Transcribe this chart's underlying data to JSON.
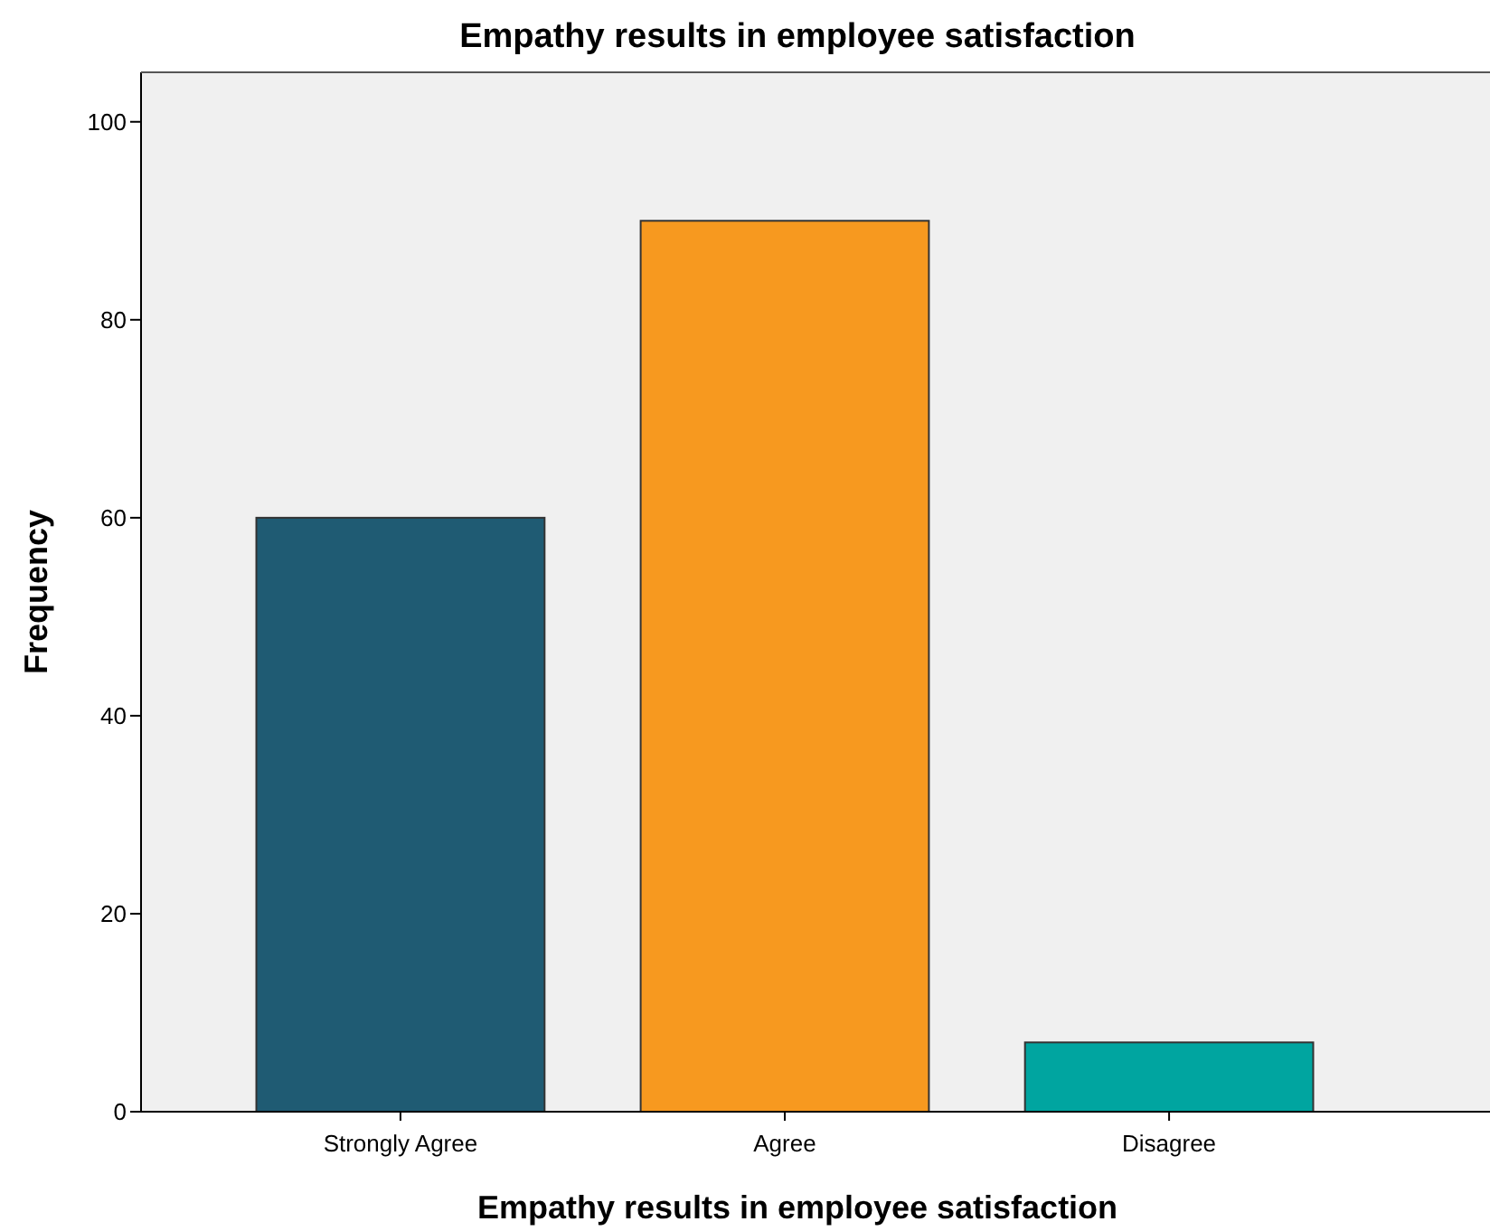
{
  "chart_data": {
    "type": "bar",
    "title": "Empathy results in employee satisfaction",
    "xlabel": "Empathy results in employee satisfaction",
    "ylabel": "Frequency",
    "categories": [
      "Strongly Agree",
      "Agree",
      "Disagree"
    ],
    "values": [
      60,
      90,
      7
    ],
    "colors": [
      "#1f5b73",
      "#f7991f",
      "#00a5a0"
    ],
    "ylim": [
      0,
      105
    ],
    "yticks": [
      0,
      20,
      40,
      60,
      80,
      100
    ],
    "grid": false
  }
}
